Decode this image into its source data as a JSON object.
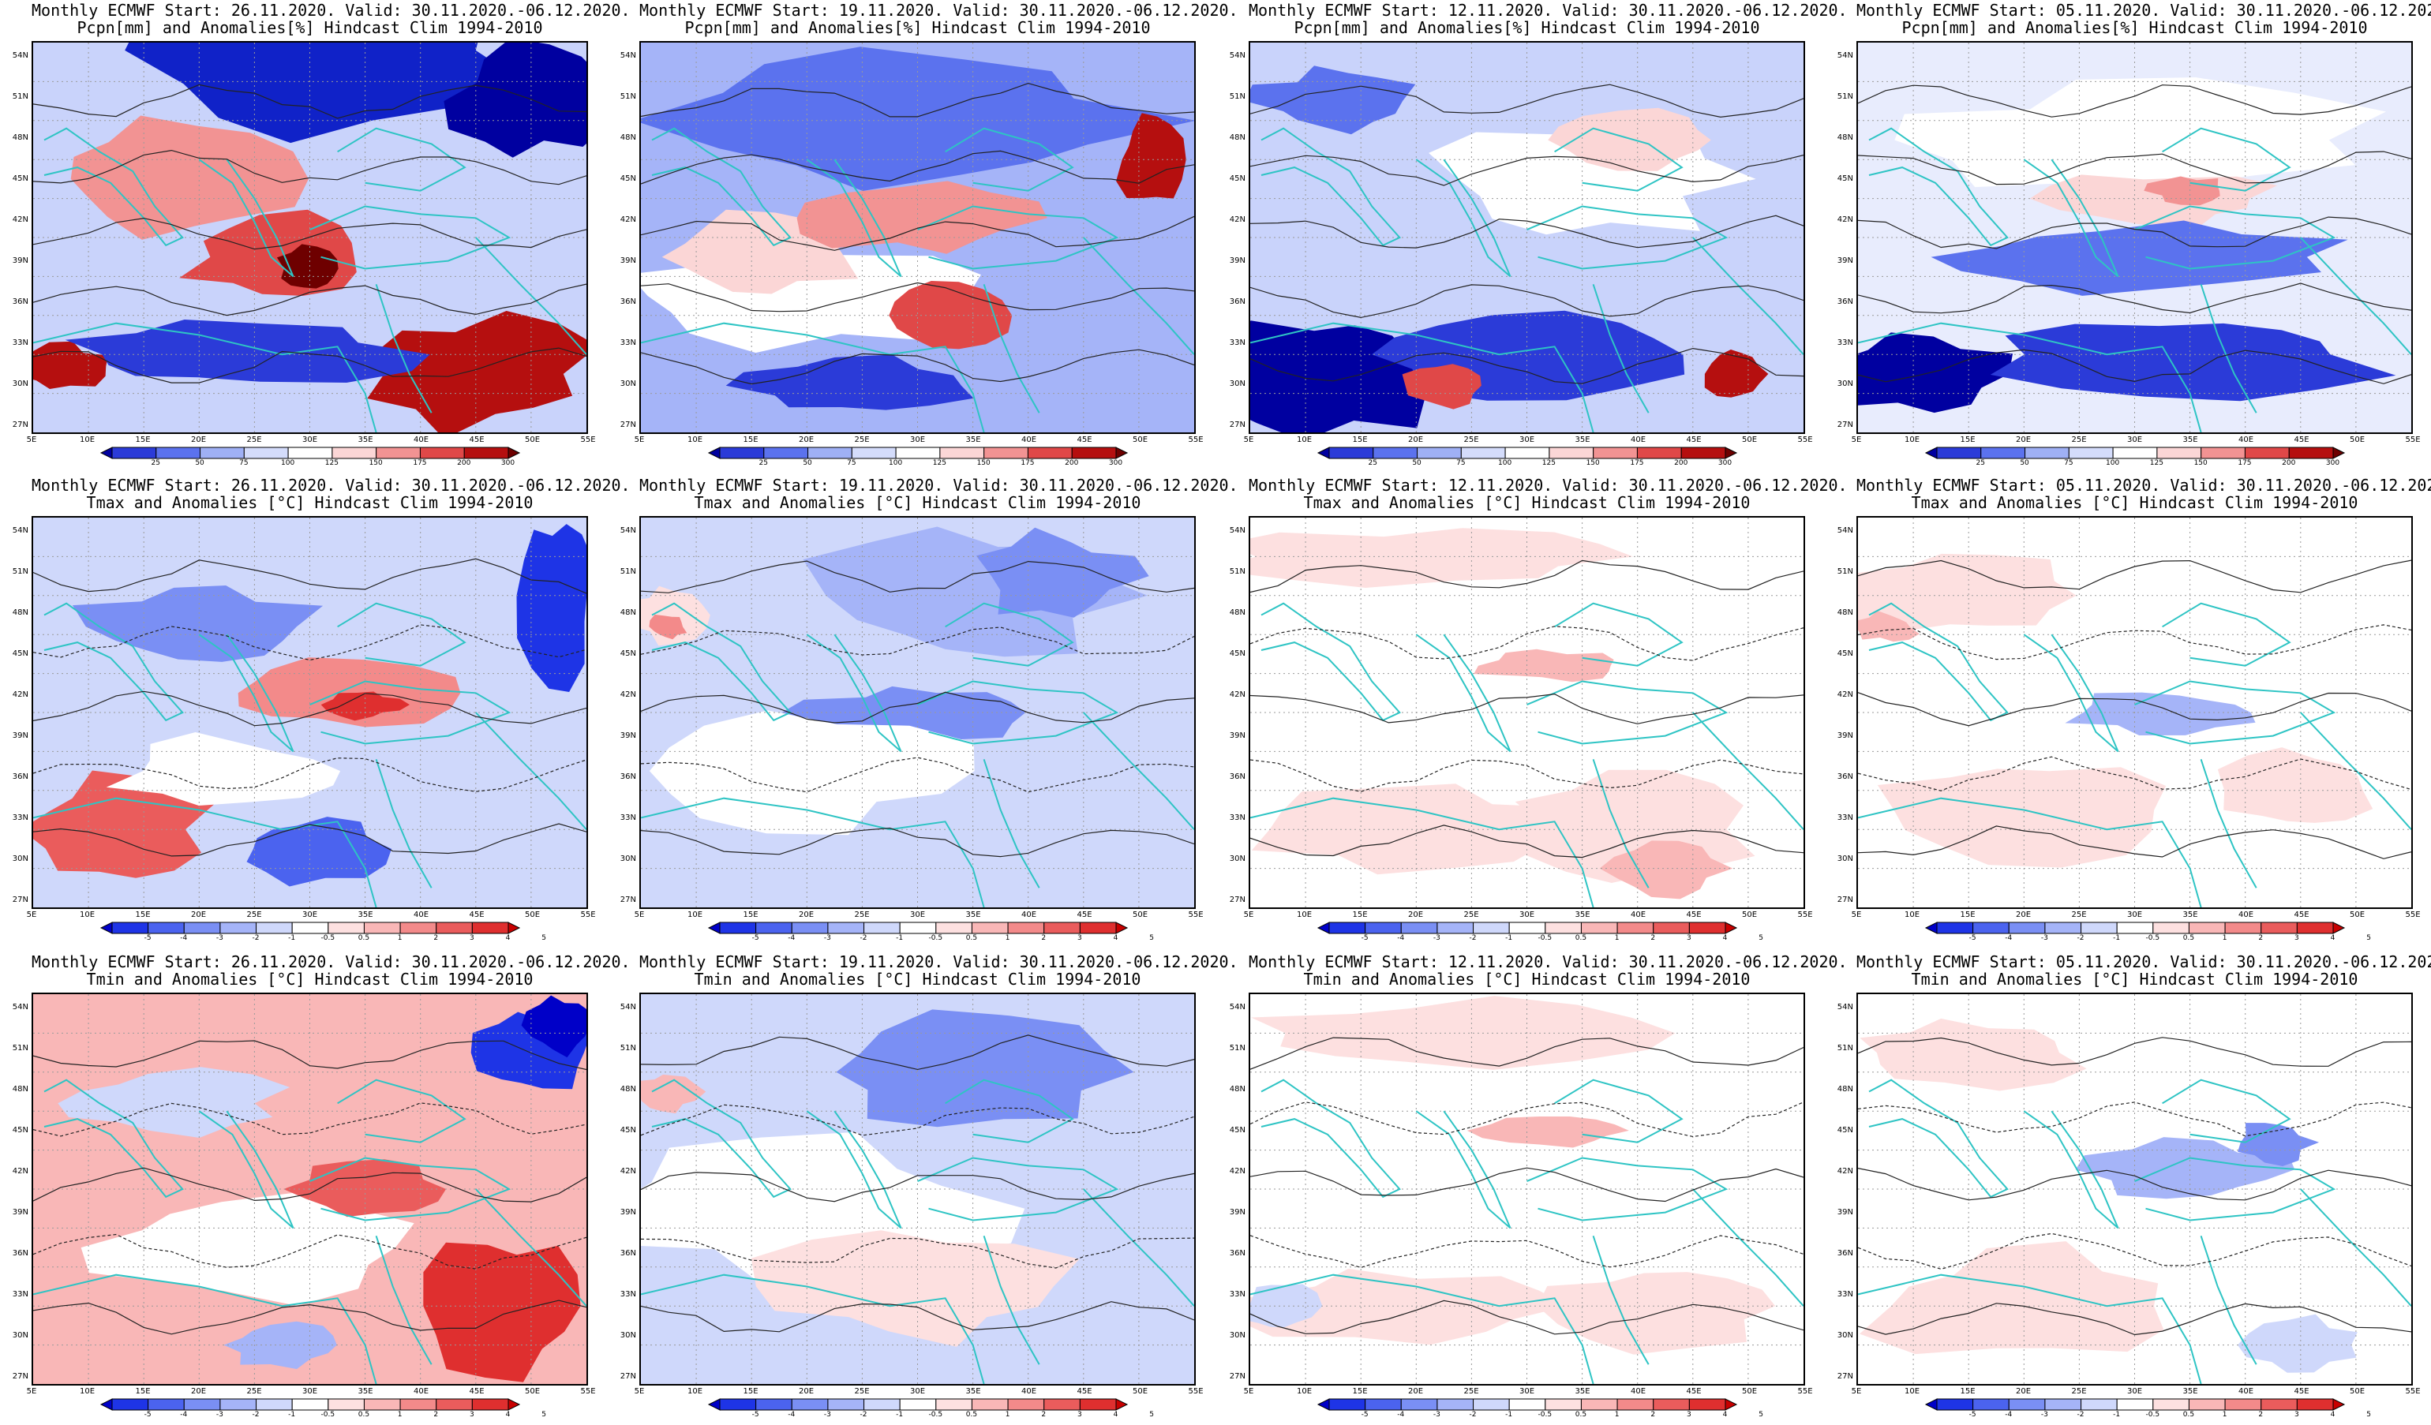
{
  "common": {
    "valid": "Valid: 30.11.2020.-06.12.2020.",
    "lat_labels": [
      "54N",
      "51N",
      "48N",
      "45N",
      "42N",
      "39N",
      "36N",
      "33N",
      "30N",
      "27N"
    ],
    "lon_labels": [
      "5E",
      "10E",
      "15E",
      "20E",
      "25E",
      "30E",
      "35E",
      "40E",
      "45E",
      "50E",
      "55E"
    ]
  },
  "starts": [
    "Start: 26.11.2020.",
    "Start: 19.11.2020.",
    "Start: 12.11.2020.",
    "Start: 05.11.2020."
  ],
  "prefix": "Monthly ECMWF",
  "rows": [
    {
      "variable": "Pcpn[mm] and Anomalies[%] Hindcast Clim 1994-2010",
      "colorbar_labels": [
        "25",
        "50",
        "75",
        "100",
        "125",
        "150",
        "175",
        "200",
        "300"
      ],
      "colorbar_colors": [
        "#0000a0",
        "#2b3bd8",
        "#5b72ee",
        "#9fb0f5",
        "#d4dcfb",
        "#ffffff",
        "#fbd6d6",
        "#f29393",
        "#e04848",
        "#b50f0f",
        "#6e0000"
      ],
      "type": "pcpn"
    },
    {
      "variable": "Tmax and Anomalies [°C] Hindcast Clim 1994-2010",
      "colorbar_labels": [
        "-5",
        "-4",
        "-3",
        "-2",
        "-1",
        "-0.5",
        "0.5",
        "1",
        "2",
        "3",
        "4",
        "5"
      ],
      "colorbar_colors": [
        "#0000c8",
        "#1e34e6",
        "#4b63ef",
        "#7a8ff4",
        "#a5b4f8",
        "#cfd8fb",
        "#ffffff",
        "#fde0e0",
        "#f9b7b7",
        "#f38a8a",
        "#ea5c5c",
        "#df2f2f",
        "#c80000"
      ],
      "type": "temp"
    },
    {
      "variable": "Tmin and Anomalies [°C] Hindcast Clim 1994-2010",
      "colorbar_labels": [
        "-5",
        "-4",
        "-3",
        "-2",
        "-1",
        "-0.5",
        "0.5",
        "1",
        "2",
        "3",
        "4",
        "5"
      ],
      "colorbar_colors": [
        "#0000c8",
        "#1e34e6",
        "#4b63ef",
        "#7a8ff4",
        "#a5b4f8",
        "#cfd8fb",
        "#ffffff",
        "#fde0e0",
        "#f9b7b7",
        "#f38a8a",
        "#ea5c5c",
        "#df2f2f",
        "#c80000"
      ],
      "type": "temp"
    }
  ],
  "anomaly_fields": [
    [
      {
        "base": "#c9d3fb",
        "blobs": [
          [
            "#1022c8",
            0.55,
            0.02,
            0.5,
            0.32
          ],
          [
            "#0000a0",
            0.9,
            0.15,
            0.2,
            0.2
          ],
          [
            "#f29393",
            0.25,
            0.35,
            0.3,
            0.2
          ],
          [
            "#e04848",
            0.45,
            0.55,
            0.25,
            0.15
          ],
          [
            "#6e0000",
            0.5,
            0.58,
            0.08,
            0.08
          ],
          [
            "#b50f0f",
            0.05,
            0.83,
            0.12,
            0.08
          ],
          [
            "#b50f0f",
            0.8,
            0.85,
            0.3,
            0.2
          ],
          [
            "#2b3bd8",
            0.35,
            0.8,
            0.45,
            0.12
          ]
        ]
      },
      {
        "base": "#a5b4f8",
        "blobs": [
          [
            "#5b72ee",
            0.5,
            0.2,
            0.6,
            0.25
          ],
          [
            "#ffffff",
            0.3,
            0.65,
            0.5,
            0.18
          ],
          [
            "#fbd6d6",
            0.2,
            0.55,
            0.25,
            0.15
          ],
          [
            "#e04848",
            0.55,
            0.7,
            0.15,
            0.12
          ],
          [
            "#b50f0f",
            0.92,
            0.3,
            0.08,
            0.15
          ],
          [
            "#f29393",
            0.5,
            0.45,
            0.3,
            0.12
          ],
          [
            "#2b3bd8",
            0.4,
            0.88,
            0.3,
            0.1
          ]
        ]
      },
      {
        "base": "#c9d3fb",
        "blobs": [
          [
            "#5b72ee",
            0.15,
            0.15,
            0.2,
            0.12
          ],
          [
            "#ffffff",
            0.6,
            0.35,
            0.4,
            0.2
          ],
          [
            "#fbd6d6",
            0.7,
            0.25,
            0.2,
            0.1
          ],
          [
            "#0000a0",
            0.15,
            0.85,
            0.3,
            0.22
          ],
          [
            "#2b3bd8",
            0.5,
            0.8,
            0.4,
            0.15
          ],
          [
            "#e04848",
            0.35,
            0.88,
            0.1,
            0.08
          ],
          [
            "#b50f0f",
            0.88,
            0.85,
            0.08,
            0.1
          ]
        ]
      },
      {
        "base": "#e8ecfd",
        "blobs": [
          [
            "#ffffff",
            0.5,
            0.25,
            0.6,
            0.2
          ],
          [
            "#fbd6d6",
            0.55,
            0.4,
            0.3,
            0.1
          ],
          [
            "#f29393",
            0.6,
            0.38,
            0.1,
            0.05
          ],
          [
            "#5b72ee",
            0.5,
            0.55,
            0.5,
            0.12
          ],
          [
            "#0000a0",
            0.1,
            0.85,
            0.25,
            0.15
          ],
          [
            "#2b3bd8",
            0.6,
            0.8,
            0.5,
            0.15
          ]
        ]
      }
    ],
    [
      {
        "base": "#cfd8fb",
        "blobs": [
          [
            "#7a8ff4",
            0.3,
            0.28,
            0.3,
            0.15
          ],
          [
            "#f38a8a",
            0.55,
            0.45,
            0.3,
            0.12
          ],
          [
            "#df2f2f",
            0.6,
            0.48,
            0.1,
            0.05
          ],
          [
            "#ea5c5c",
            0.15,
            0.8,
            0.25,
            0.2
          ],
          [
            "#4b63ef",
            0.5,
            0.85,
            0.2,
            0.12
          ],
          [
            "#1e34e6",
            0.95,
            0.2,
            0.1,
            0.3
          ],
          [
            "#ffffff",
            0.35,
            0.65,
            0.3,
            0.12
          ]
        ]
      },
      {
        "base": "#cfd8fb",
        "blobs": [
          [
            "#a5b4f8",
            0.6,
            0.2,
            0.4,
            0.25
          ],
          [
            "#7a8ff4",
            0.75,
            0.15,
            0.2,
            0.15
          ],
          [
            "#7a8ff4",
            0.5,
            0.5,
            0.3,
            0.1
          ],
          [
            "#ffffff",
            0.3,
            0.65,
            0.4,
            0.2
          ],
          [
            "#fde0e0",
            0.05,
            0.25,
            0.1,
            0.1
          ],
          [
            "#f38a8a",
            0.05,
            0.28,
            0.05,
            0.05
          ]
        ]
      },
      {
        "base": "#ffffff",
        "blobs": [
          [
            "#fde0e0",
            0.3,
            0.1,
            0.5,
            0.1
          ],
          [
            "#f9b7b7",
            0.55,
            0.38,
            0.2,
            0.06
          ],
          [
            "#fde0e0",
            0.3,
            0.8,
            0.4,
            0.15
          ],
          [
            "#fde0e0",
            0.7,
            0.8,
            0.3,
            0.2
          ],
          [
            "#f9b7b7",
            0.75,
            0.9,
            0.15,
            0.1
          ]
        ]
      },
      {
        "base": "#ffffff",
        "blobs": [
          [
            "#fde0e0",
            0.2,
            0.2,
            0.3,
            0.15
          ],
          [
            "#f9b7b7",
            0.05,
            0.28,
            0.08,
            0.05
          ],
          [
            "#a5b4f8",
            0.55,
            0.5,
            0.25,
            0.08
          ],
          [
            "#fde0e0",
            0.3,
            0.75,
            0.4,
            0.2
          ],
          [
            "#fde0e0",
            0.8,
            0.7,
            0.2,
            0.15
          ]
        ]
      }
    ],
    [
      {
        "base": "#f9b7b7",
        "blobs": [
          [
            "#cfd8fb",
            0.25,
            0.28,
            0.3,
            0.12
          ],
          [
            "#1e34e6",
            0.9,
            0.15,
            0.15,
            0.15
          ],
          [
            "#0000c8",
            0.95,
            0.08,
            0.08,
            0.1
          ],
          [
            "#ffffff",
            0.4,
            0.65,
            0.4,
            0.18
          ],
          [
            "#ea5c5c",
            0.6,
            0.5,
            0.2,
            0.1
          ],
          [
            "#df2f2f",
            0.85,
            0.8,
            0.2,
            0.25
          ],
          [
            "#a5b4f8",
            0.45,
            0.9,
            0.15,
            0.08
          ]
        ]
      },
      {
        "base": "#cfd8fb",
        "blobs": [
          [
            "#7a8ff4",
            0.6,
            0.2,
            0.4,
            0.2
          ],
          [
            "#ffffff",
            0.3,
            0.55,
            0.5,
            0.25
          ],
          [
            "#fde0e0",
            0.5,
            0.75,
            0.4,
            0.2
          ],
          [
            "#f9b7b7",
            0.05,
            0.25,
            0.08,
            0.08
          ]
        ]
      },
      {
        "base": "#ffffff",
        "blobs": [
          [
            "#fde0e0",
            0.35,
            0.1,
            0.5,
            0.12
          ],
          [
            "#f9b7b7",
            0.55,
            0.35,
            0.2,
            0.06
          ],
          [
            "#fde0e0",
            0.25,
            0.8,
            0.4,
            0.12
          ],
          [
            "#fde0e0",
            0.75,
            0.8,
            0.3,
            0.15
          ],
          [
            "#cfd8fb",
            0.05,
            0.8,
            0.1,
            0.1
          ]
        ]
      },
      {
        "base": "#ffffff",
        "blobs": [
          [
            "#fde0e0",
            0.2,
            0.15,
            0.3,
            0.12
          ],
          [
            "#a5b4f8",
            0.6,
            0.45,
            0.25,
            0.1
          ],
          [
            "#7a8ff4",
            0.75,
            0.38,
            0.1,
            0.08
          ],
          [
            "#fde0e0",
            0.3,
            0.8,
            0.4,
            0.2
          ],
          [
            "#cfd8fb",
            0.8,
            0.9,
            0.15,
            0.1
          ]
        ]
      }
    ]
  ]
}
